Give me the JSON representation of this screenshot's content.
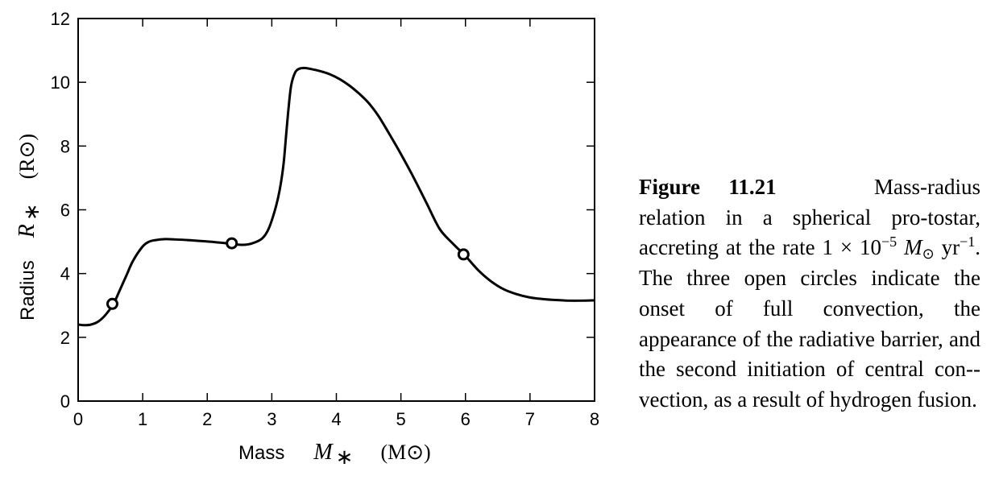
{
  "chart_data": {
    "type": "line",
    "x_axis": {
      "label_word": "Mass",
      "label_symbol": "M",
      "label_symbol_sub": "∗",
      "label_unit": "(M⊙)",
      "ticks": [
        "0",
        "1",
        "2",
        "3",
        "4",
        "5",
        "6",
        "7",
        "8"
      ],
      "range": [
        0,
        8
      ]
    },
    "y_axis": {
      "label_word": "Radius",
      "label_symbol": "R",
      "label_symbol_sub": "∗",
      "label_unit": "(R⊙)",
      "ticks": [
        "0",
        "2",
        "4",
        "6",
        "8",
        "10",
        "12"
      ],
      "range": [
        0,
        12
      ]
    },
    "grid": false,
    "series": [
      {
        "x": [
          0.0,
          0.1,
          0.2,
          0.3,
          0.4,
          0.5,
          0.55,
          0.65,
          0.75,
          0.85,
          1.0,
          1.1,
          1.2,
          1.35,
          1.5,
          1.7,
          1.9,
          2.1,
          2.3,
          2.4,
          2.55,
          2.7,
          2.85,
          2.95,
          3.05,
          3.12,
          3.18,
          3.22,
          3.26,
          3.3,
          3.36,
          3.42,
          3.5,
          3.6,
          3.75,
          3.9,
          4.05,
          4.2,
          4.35,
          4.5,
          4.65,
          4.8,
          5.0,
          5.2,
          5.4,
          5.6,
          5.8,
          6.0,
          6.2,
          6.4,
          6.6,
          6.8,
          7.0,
          7.2,
          7.4,
          7.6,
          7.8,
          8.0
        ],
        "y": [
          2.4,
          2.38,
          2.4,
          2.48,
          2.65,
          2.9,
          3.05,
          3.5,
          3.95,
          4.4,
          4.85,
          5.0,
          5.05,
          5.08,
          5.07,
          5.05,
          5.02,
          4.99,
          4.95,
          4.93,
          4.9,
          4.95,
          5.1,
          5.4,
          6.0,
          6.6,
          7.4,
          8.3,
          9.2,
          9.9,
          10.3,
          10.42,
          10.45,
          10.42,
          10.35,
          10.25,
          10.1,
          9.9,
          9.65,
          9.35,
          8.95,
          8.45,
          7.75,
          7.0,
          6.2,
          5.4,
          4.95,
          4.55,
          4.1,
          3.75,
          3.5,
          3.35,
          3.25,
          3.2,
          3.17,
          3.15,
          3.15,
          3.16
        ]
      }
    ],
    "markers": [
      {
        "x": 0.53,
        "y": 3.05
      },
      {
        "x": 2.38,
        "y": 4.95
      },
      {
        "x": 5.97,
        "y": 4.6
      }
    ]
  },
  "caption": {
    "label": "Figure 11.21",
    "text_1": "Mass-radius relation in a spherical pro-­tostar, accreting at the rate",
    "rate_coef": "1 × 10",
    "rate_exp": "−5",
    "rate_unit_symbol": "M",
    "rate_unit_sub": "⊙",
    "rate_time": "yr",
    "rate_time_exp": "−1",
    "text_2": ". The three open circles indicate the onset of full convection, the appearance of the radiative barrier, and the second initiation of central con-­vection, as a result of hydrogen fusion."
  }
}
